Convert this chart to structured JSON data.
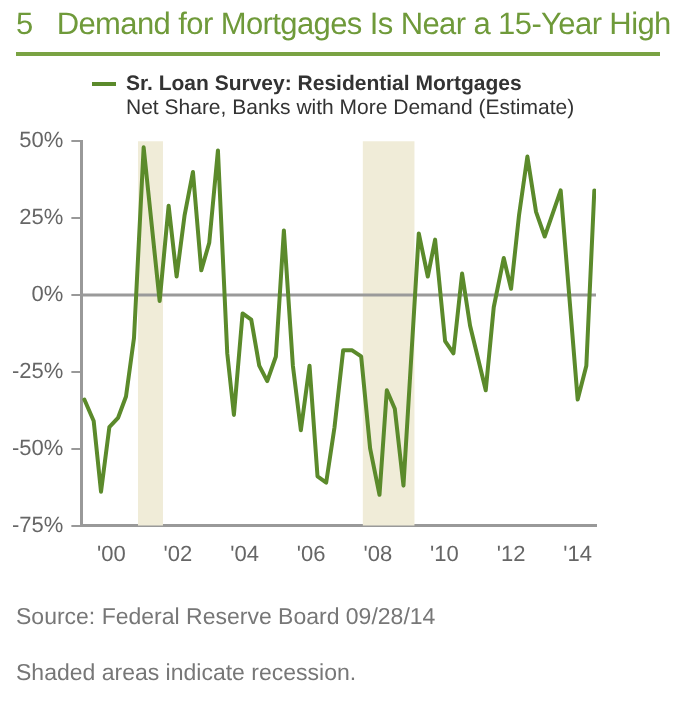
{
  "chart_data": {
    "type": "line",
    "title": "5   Demand for Mortgages Is Near a 15-Year High",
    "subtitle": "Net Share, Banks with More Demand (Estimate)",
    "x": [
      1999.19,
      1999.47,
      1999.69,
      1999.94,
      2000.2,
      2000.44,
      2000.68,
      2000.97,
      2001.45,
      2001.72,
      2001.96,
      2002.2,
      2002.45,
      2002.7,
      2002.94,
      2003.2,
      2003.48,
      2003.68,
      2003.94,
      2004.2,
      2004.44,
      2004.68,
      2004.94,
      2005.18,
      2005.45,
      2005.69,
      2005.95,
      2006.19,
      2006.45,
      2006.7,
      2006.96,
      2007.23,
      2007.5,
      2007.77,
      2008.05,
      2008.27,
      2008.51,
      2008.77,
      2009.23,
      2009.5,
      2009.72,
      2010.02,
      2010.27,
      2010.53,
      2010.77,
      2011.24,
      2011.48,
      2011.78,
      2012.0,
      2012.24,
      2012.49,
      2012.75,
      2013.01,
      2013.49,
      2014.0,
      2014.26,
      2014.5
    ],
    "series": [
      {
        "name": "Sr. Loan Survey: Residential Mortgages",
        "color": "#5b8a2b",
        "values": [
          -34,
          -41,
          -64,
          -43,
          -40,
          -33,
          -14,
          48,
          -2,
          29,
          6,
          26,
          40,
          8,
          17,
          47,
          -19,
          -39,
          -6,
          -8,
          -23,
          -28,
          -20,
          21,
          -23,
          -44,
          -23,
          -59,
          -61,
          -43,
          -18,
          -18,
          -20,
          -50,
          -65,
          -31,
          -37,
          -62,
          20,
          6,
          18,
          -15,
          -19,
          7,
          -10,
          -31,
          -4,
          12,
          2,
          26,
          45,
          27,
          19,
          34,
          -34,
          -23,
          34
        ]
      }
    ],
    "xlim": [
      1999.1,
      2014.55
    ],
    "xticks": [
      {
        "value": 2000,
        "label": "'00"
      },
      {
        "value": 2002,
        "label": "'02"
      },
      {
        "value": 2004,
        "label": "'04"
      },
      {
        "value": 2006,
        "label": "'06"
      },
      {
        "value": 2008,
        "label": "'08"
      },
      {
        "value": 2010,
        "label": "'10"
      },
      {
        "value": 2012,
        "label": "'12"
      },
      {
        "value": 2014,
        "label": "'14"
      }
    ],
    "ylim": [
      -75,
      50
    ],
    "yticks": [
      {
        "value": -75,
        "label": "-75%"
      },
      {
        "value": -50,
        "label": "-50%"
      },
      {
        "value": -25,
        "label": "-25%"
      },
      {
        "value": 0,
        "label": "0%"
      },
      {
        "value": 25,
        "label": "25%"
      },
      {
        "value": 50,
        "label": "50%"
      }
    ],
    "ref_lines": [
      {
        "axis": "y",
        "value": 0,
        "color": "#9a9a9a"
      }
    ],
    "bands": [
      {
        "axis": "x",
        "from": 2000.8,
        "to": 2001.55,
        "color": "#f0ecd8"
      },
      {
        "axis": "x",
        "from": 2007.55,
        "to": 2009.1,
        "color": "#f0ecd8"
      }
    ],
    "grid": false,
    "legend": "top left",
    "marker": "none",
    "line_style": "solid",
    "annotations": [
      "Source: Federal Reserve Board   09/28/14",
      "Shaded areas indicate recession."
    ]
  }
}
